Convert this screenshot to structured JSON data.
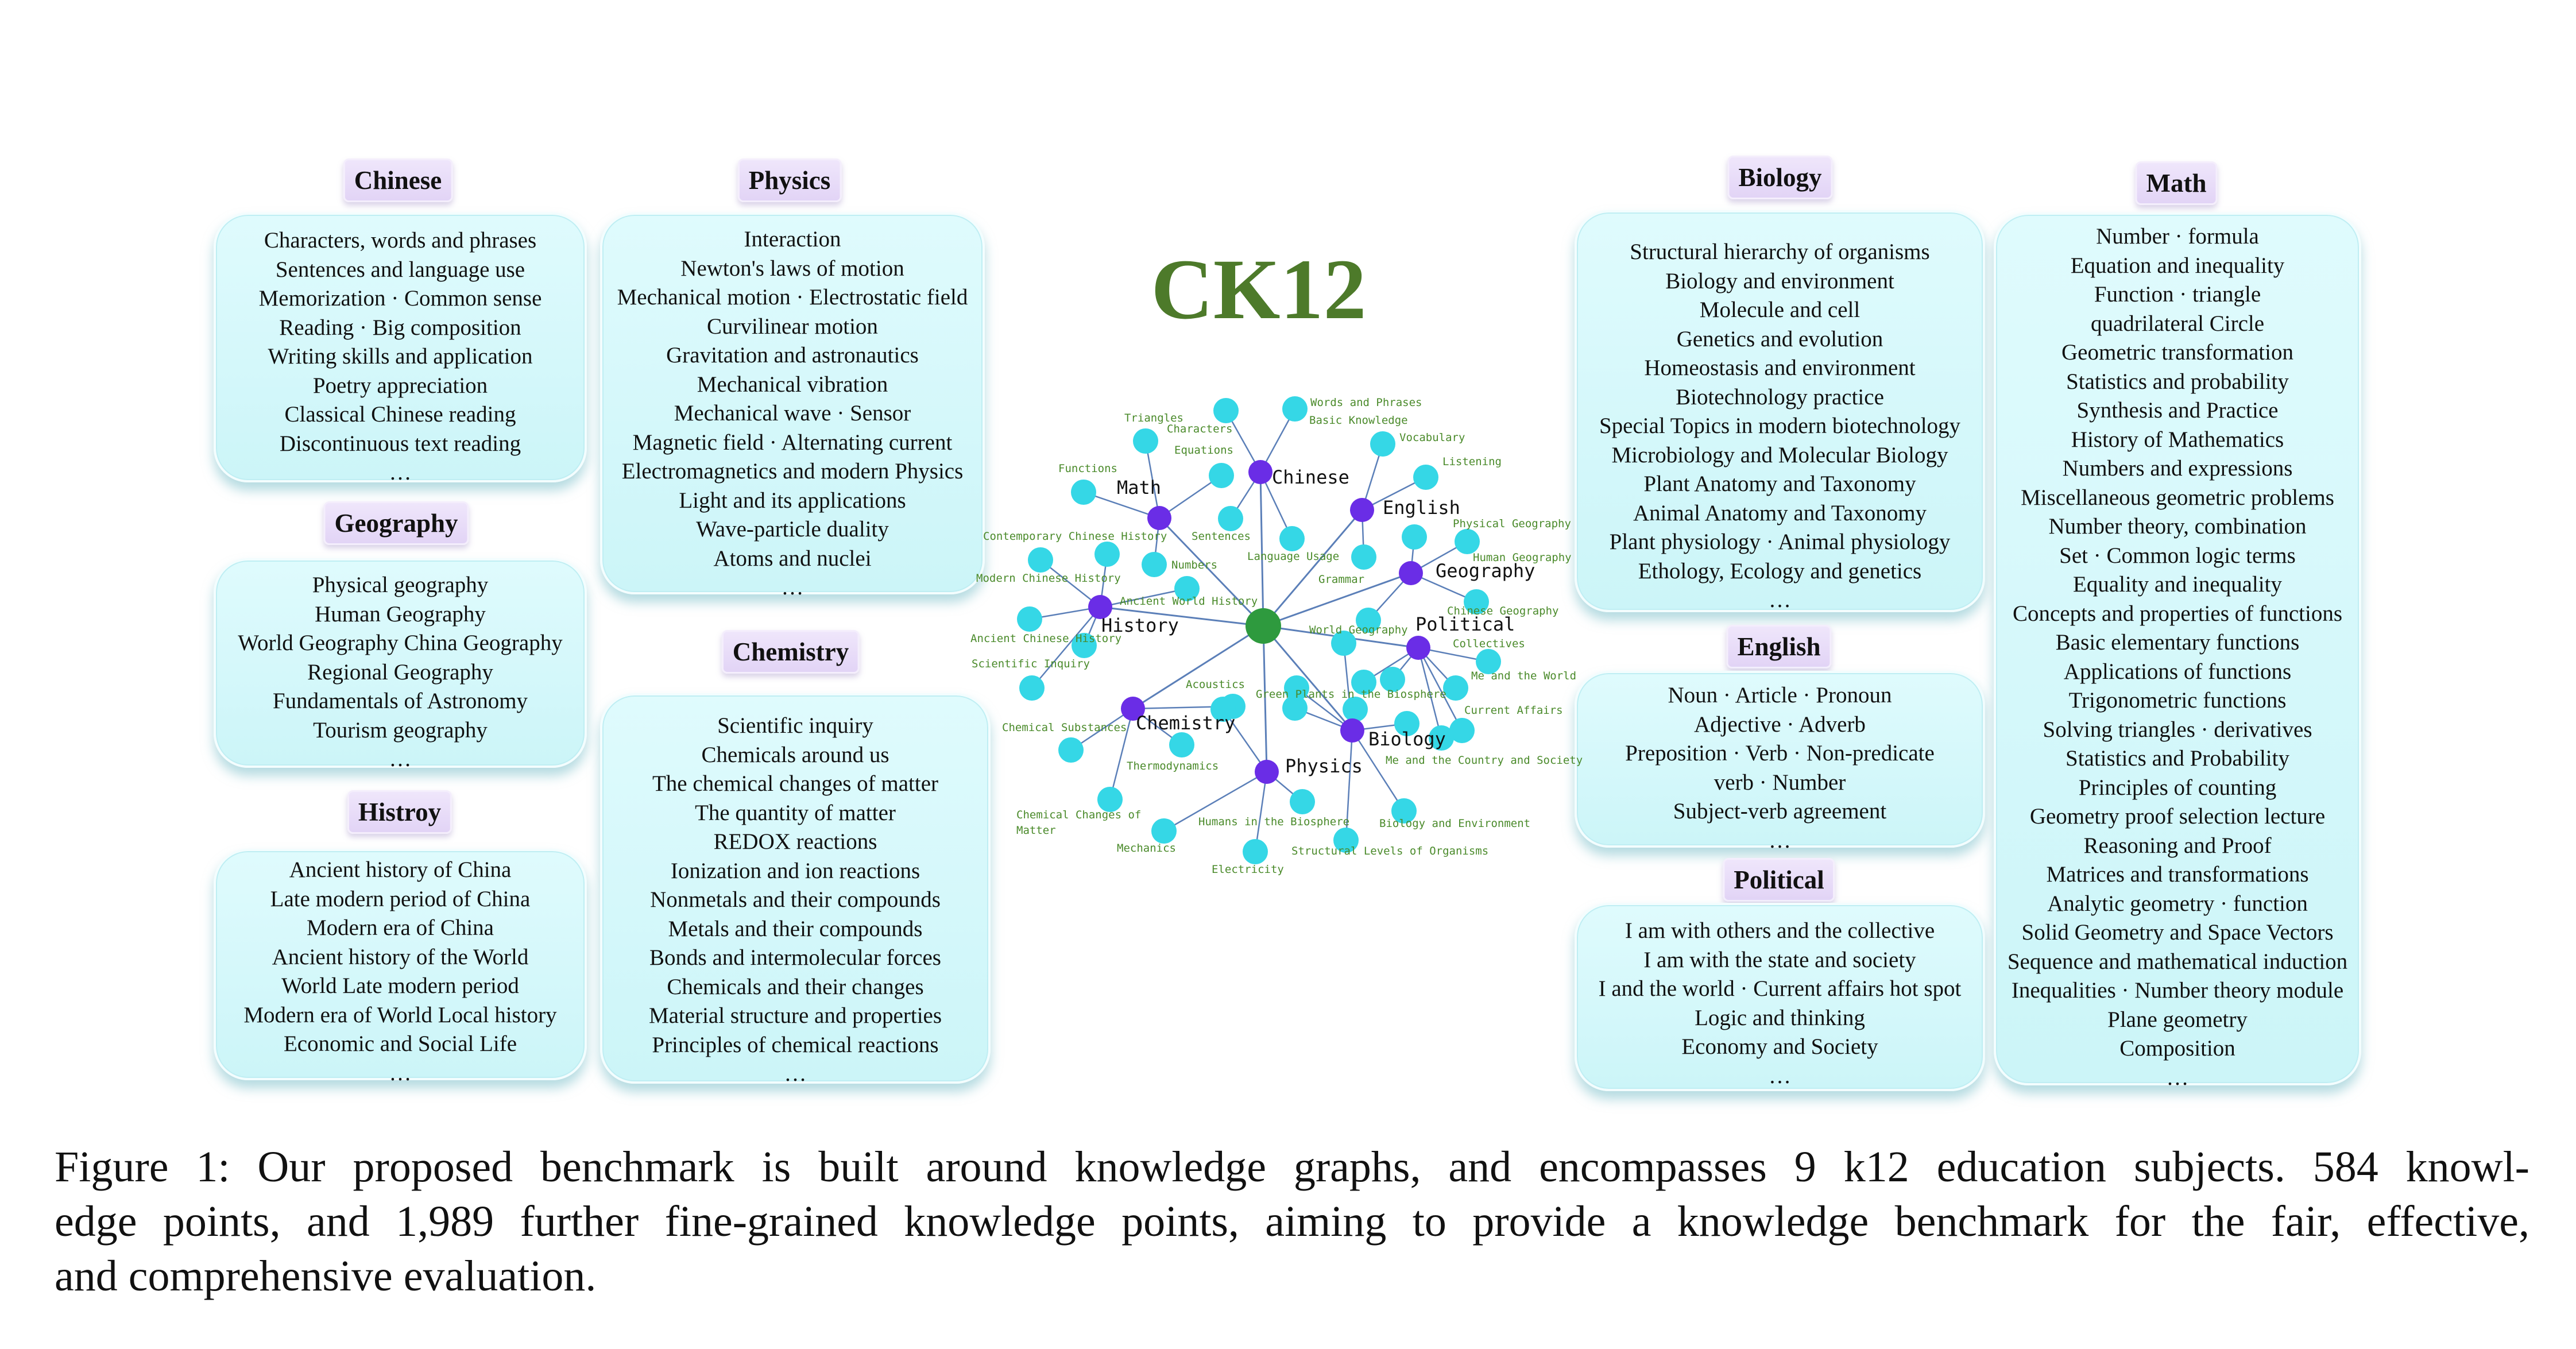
{
  "title": "CK12",
  "panels": {
    "chinese": {
      "heading": "Chinese",
      "items": [
        "Characters, words and phrases",
        "Sentences and language use",
        "Memorization · Common sense",
        "Reading  · Big composition",
        "Writing skills and application",
        "Poetry appreciation",
        "Classical Chinese reading",
        "Discontinuous text reading",
        "…"
      ]
    },
    "geography": {
      "heading": "Geography",
      "items": [
        "Physical geography",
        "Human Geography",
        "World Geography China Geography",
        "Regional Geography",
        "Fundamentals of Astronomy",
        "Tourism geography",
        "…"
      ]
    },
    "history": {
      "heading": "Histroy",
      "items": [
        "Ancient history of China",
        "Late modern period of China",
        "Modern era of China",
        "Ancient history of the World",
        "World Late modern period",
        "Modern era of World Local history",
        "Economic and Social Life",
        "…"
      ]
    },
    "physics": {
      "heading": "Physics",
      "items": [
        "Interaction",
        "Newton's laws of motion",
        "Mechanical motion · Electrostatic field",
        "Curvilinear motion",
        "Gravitation and astronautics",
        "Mechanical vibration",
        "Mechanical wave · Sensor",
        "Magnetic field · Alternating current",
        "Electromagnetics and modern Physics",
        "Light and its applications",
        "Wave-particle duality",
        "Atoms and nuclei",
        "…"
      ]
    },
    "chemistry": {
      "heading": "Chemistry",
      "items": [
        "Scientific inquiry",
        "Chemicals around us",
        "The chemical changes of matter",
        "The quantity of matter",
        "REDOX reactions",
        "Ionization and ion reactions",
        "Nonmetals and their compounds",
        "Metals and their compounds",
        "Bonds and intermolecular forces",
        "Chemicals and their changes",
        "Material structure and properties",
        "Principles of chemical reactions",
        "…"
      ]
    },
    "biology": {
      "heading": "Biology",
      "items": [
        "Structural hierarchy of organisms",
        "Biology and environment",
        "Molecule and cell",
        "Genetics and evolution",
        "Homeostasis and environment",
        "Biotechnology practice",
        "Special Topics in modern biotechnology",
        "Microbiology and Molecular Biology",
        "Plant Anatomy and Taxonomy",
        "Animal Anatomy and Taxonomy",
        "Plant physiology · Animal physiology",
        "Ethology, Ecology and genetics",
        "…"
      ]
    },
    "english": {
      "heading": "English",
      "items": [
        "Noun · Article · Pronoun",
        "Adjective · Adverb",
        "Preposition · Verb · Non-predicate",
        "verb · Number",
        "Subject-verb agreement",
        "…"
      ]
    },
    "political": {
      "heading": "Political",
      "items": [
        "I am with others and the collective",
        "I am with the state and society",
        "I and the world · Current affairs hot spot",
        "Logic and thinking",
        "Economy and Society",
        "…"
      ]
    },
    "math": {
      "heading": "Math",
      "items": [
        "Number · formula",
        "Equation and inequality",
        "Function · triangle",
        "quadrilateral Circle",
        "Geometric transformation",
        "Statistics and probability",
        "Synthesis and Practice",
        "History of Mathematics",
        "Numbers and expressions",
        "Miscellaneous geometric problems",
        "Number theory, combination",
        "Set · Common logic terms",
        "Equality and inequality",
        "Concepts and properties of functions",
        "Basic elementary functions",
        "Applications of functions",
        "Trigonometric functions",
        "Solving triangles · derivatives",
        "Statistics and Probability",
        "Principles of counting",
        "Geometry proof selection lecture",
        "Reasoning and Proof",
        "Matrices and transformations",
        "Analytic geometry · function",
        "Solid Geometry and Space Vectors",
        "Sequence and mathematical induction",
        "Inequalities · Number theory module",
        "Plane geometry",
        "Composition",
        "…"
      ]
    }
  },
  "graph": {
    "colors": {
      "center": "#2e9a3e",
      "subject": "#6a2de6",
      "leaf": "#35d7e6",
      "edge": "#5b7fb8",
      "label": "#4a8a2a"
    },
    "subjects": [
      "Chinese",
      "Math",
      "English",
      "Geography",
      "History",
      "Political",
      "Chemistry",
      "Biology",
      "Physics"
    ],
    "leaves": [
      "Triangles",
      "Characters",
      "Words and Phrases",
      "Basic Knowledge",
      "Vocabulary",
      "Equations",
      "Functions",
      "Listening",
      "Physical Geography",
      "Contemporary Chinese History",
      "Sentences",
      "Human Geography",
      "Language Usage",
      "Numbers",
      "Modern Chinese History",
      "Grammar",
      "Ancient World History",
      "Chinese Geography",
      "Collectives",
      "World Geography",
      "Ancient Chinese History",
      "Me and the World",
      "Scientific Inquiry",
      "Acoustics",
      "Green Plants in the Biosphere",
      "Current Affairs",
      "Chemical Substances",
      "Me and the Country and Society",
      "Thermodynamics",
      "Chemical Changes of",
      "Matter",
      "Humans in the Biosphere",
      "Biology and Environment",
      "Mechanics",
      "Structural Levels of Organisms",
      "Electricity"
    ]
  },
  "caption": [
    "Figure 1: Our proposed benchmark is built around knowledge graphs, and encompasses 9 k12 education subjects. 584 knowl-",
    "edge points, and 1,989 further fine-grained knowledge points, aiming to provide a knowledge benchmark for the fair, effective,",
    "and comprehensive evaluation."
  ]
}
